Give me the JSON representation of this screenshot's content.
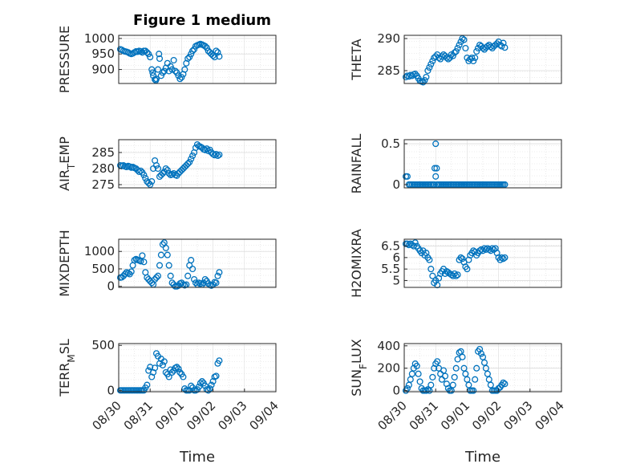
{
  "figure": {
    "title": "Figure 1 medium",
    "marker_color": "#0072BD",
    "axis_color": "#262626",
    "grid_color": "#dcdcdc"
  },
  "chart_data": [
    {
      "type": "scatter",
      "title": "Figure 1 medium",
      "ylabel": "PRESSURE",
      "xlim": [
        0,
        5
      ],
      "ylim": [
        855,
        1010
      ],
      "yticks": [
        900,
        950,
        1000
      ],
      "ytick_labels": [
        "900",
        "950",
        "1000"
      ],
      "xticks": [],
      "xtick_labels": [],
      "x": [
        0.05,
        0.1,
        0.15,
        0.2,
        0.25,
        0.3,
        0.35,
        0.4,
        0.45,
        0.5,
        0.55,
        0.6,
        0.65,
        0.7,
        0.75,
        0.8,
        0.85,
        0.9,
        0.95,
        1.0,
        1.05,
        1.08,
        1.1,
        1.15,
        1.18,
        1.2,
        1.25,
        1.28,
        1.3,
        1.35,
        1.4,
        1.45,
        1.5,
        1.55,
        1.6,
        1.65,
        1.7,
        1.75,
        1.8,
        1.85,
        1.9,
        1.95,
        2.0,
        2.05,
        2.1,
        2.15,
        2.2,
        2.25,
        2.3,
        2.35,
        2.4,
        2.45,
        2.5,
        2.55,
        2.6,
        2.65,
        2.7,
        2.75,
        2.8,
        2.85,
        2.9,
        2.95,
        3.0,
        3.05,
        3.1,
        3.15,
        3.2
      ],
      "y": [
        965,
        963,
        960,
        958,
        957,
        955,
        952,
        950,
        952,
        955,
        958,
        957,
        960,
        958,
        955,
        960,
        960,
        955,
        950,
        940,
        900,
        890,
        880,
        868,
        865,
        870,
        900,
        950,
        935,
        880,
        890,
        895,
        905,
        920,
        895,
        910,
        900,
        930,
        895,
        890,
        880,
        870,
        875,
        885,
        900,
        920,
        935,
        940,
        950,
        960,
        965,
        975,
        978,
        980,
        982,
        980,
        978,
        975,
        970,
        960,
        955,
        950,
        945,
        940,
        960,
        955,
        942
      ]
    },
    {
      "type": "scatter",
      "title": "",
      "ylabel": "THETA",
      "xlim": [
        0,
        5
      ],
      "ylim": [
        283,
        290.5
      ],
      "yticks": [
        285,
        290
      ],
      "ytick_labels": [
        "285",
        "290"
      ],
      "xticks": [],
      "xtick_labels": [],
      "x": [
        0.05,
        0.1,
        0.15,
        0.2,
        0.25,
        0.3,
        0.35,
        0.4,
        0.45,
        0.5,
        0.55,
        0.6,
        0.65,
        0.7,
        0.75,
        0.8,
        0.85,
        0.9,
        0.95,
        1.0,
        1.05,
        1.1,
        1.15,
        1.2,
        1.25,
        1.3,
        1.35,
        1.4,
        1.45,
        1.5,
        1.55,
        1.6,
        1.65,
        1.7,
        1.75,
        1.8,
        1.85,
        1.9,
        1.95,
        2.0,
        2.05,
        2.1,
        2.15,
        2.2,
        2.25,
        2.3,
        2.35,
        2.4,
        2.45,
        2.5,
        2.55,
        2.6,
        2.65,
        2.7,
        2.75,
        2.8,
        2.85,
        2.9,
        2.95,
        3.0,
        3.05,
        3.1,
        3.15,
        3.2
      ],
      "y": [
        284,
        284.2,
        284.1,
        284.3,
        284.2,
        284.4,
        284.5,
        284.2,
        283.8,
        283.4,
        283.3,
        283.2,
        283.5,
        284,
        285,
        285.5,
        286,
        286.5,
        287,
        287.2,
        287.5,
        287,
        286.8,
        287.2,
        287.5,
        287.3,
        287,
        286.8,
        287,
        287.5,
        287.3,
        287.8,
        288,
        288.5,
        289,
        289.5,
        290,
        289.8,
        288.5,
        287,
        286.5,
        286.8,
        287,
        286.5,
        287,
        288,
        288.5,
        289,
        288.8,
        288.5,
        288.3,
        288.6,
        288.8,
        289,
        288.7,
        288.5,
        288.8,
        289,
        289.2,
        289.5,
        289,
        288.8,
        289.3,
        288.6
      ]
    },
    {
      "type": "scatter",
      "title": "",
      "ylabel": "AIR_TEMP",
      "xlim": [
        0,
        5
      ],
      "ylim": [
        274,
        289
      ],
      "yticks": [
        275,
        280,
        285
      ],
      "ytick_labels": [
        "275",
        "280",
        "285"
      ],
      "xticks": [],
      "xtick_labels": [],
      "x": [
        0.05,
        0.1,
        0.15,
        0.2,
        0.25,
        0.3,
        0.35,
        0.4,
        0.45,
        0.5,
        0.55,
        0.6,
        0.65,
        0.7,
        0.75,
        0.8,
        0.85,
        0.9,
        0.95,
        1.0,
        1.05,
        1.1,
        1.15,
        1.2,
        1.25,
        1.3,
        1.35,
        1.4,
        1.45,
        1.5,
        1.55,
        1.6,
        1.65,
        1.7,
        1.75,
        1.8,
        1.85,
        1.9,
        1.95,
        2.0,
        2.05,
        2.1,
        2.15,
        2.2,
        2.25,
        2.3,
        2.35,
        2.4,
        2.45,
        2.5,
        2.55,
        2.6,
        2.65,
        2.7,
        2.75,
        2.8,
        2.85,
        2.9,
        2.95,
        3.0,
        3.05,
        3.1,
        3.15,
        3.2
      ],
      "y": [
        281,
        280.8,
        281,
        280.7,
        280.5,
        280.8,
        280.6,
        280.3,
        280.5,
        280.2,
        280,
        279.5,
        279,
        279.3,
        278.8,
        278,
        277,
        276,
        275.5,
        275,
        276,
        280,
        282.5,
        281,
        280,
        277.5,
        278,
        278.5,
        279,
        280,
        279.5,
        278.5,
        278,
        278.2,
        278.5,
        278,
        277.8,
        278.5,
        279,
        279.5,
        280,
        280.5,
        281,
        281.5,
        282,
        283,
        284,
        285,
        286.5,
        287.5,
        287,
        286.8,
        286.5,
        286,
        285.8,
        286.2,
        285.5,
        285.8,
        285,
        284.5,
        284.2,
        284.5,
        284,
        284.3
      ]
    },
    {
      "type": "scatter",
      "title": "",
      "ylabel": "RAINFALL",
      "xlim": [
        0,
        5
      ],
      "ylim": [
        -0.04,
        0.55
      ],
      "yticks": [
        0,
        0.5
      ],
      "ytick_labels": [
        "0",
        "0.5"
      ],
      "xticks": [],
      "xtick_labels": [],
      "x": [
        0.05,
        0.1,
        0.15,
        0.2,
        0.25,
        0.3,
        0.35,
        0.4,
        0.45,
        0.5,
        0.55,
        0.6,
        0.65,
        0.7,
        0.75,
        0.8,
        0.85,
        0.9,
        0.95,
        0.97,
        1.0,
        1.0,
        1.03,
        1.05,
        1.1,
        1.15,
        1.2,
        1.25,
        1.3,
        1.35,
        1.4,
        1.45,
        1.5,
        1.55,
        1.6,
        1.65,
        1.7,
        1.75,
        1.8,
        1.85,
        1.9,
        1.95,
        2.0,
        2.05,
        2.1,
        2.15,
        2.2,
        2.25,
        2.3,
        2.35,
        2.4,
        2.45,
        2.5,
        2.55,
        2.6,
        2.65,
        2.7,
        2.75,
        2.8,
        2.85,
        2.9,
        2.95,
        3.0,
        3.05,
        3.1,
        3.15,
        3.2
      ],
      "y": [
        0.1,
        0.1,
        0,
        0,
        0,
        0,
        0,
        0,
        0,
        0,
        0,
        0,
        0,
        0,
        0,
        0,
        0,
        0,
        0,
        0.2,
        0.1,
        0.5,
        0.2,
        0,
        0,
        0,
        0,
        0,
        0,
        0,
        0,
        0,
        0,
        0,
        0,
        0,
        0,
        0,
        0,
        0,
        0,
        0,
        0,
        0,
        0,
        0,
        0,
        0,
        0,
        0,
        0,
        0,
        0,
        0,
        0,
        0,
        0,
        0,
        0,
        0,
        0,
        0,
        0,
        0,
        0,
        0,
        0
      ]
    },
    {
      "type": "scatter",
      "title": "",
      "ylabel": "MIXDEPTH",
      "xlim": [
        0,
        5
      ],
      "ylim": [
        -30,
        1350
      ],
      "yticks": [
        0,
        500,
        1000
      ],
      "ytick_labels": [
        "0",
        "500",
        "1000"
      ],
      "xticks": [],
      "xtick_labels": [],
      "x": [
        0.05,
        0.1,
        0.15,
        0.2,
        0.25,
        0.3,
        0.35,
        0.4,
        0.45,
        0.5,
        0.55,
        0.6,
        0.65,
        0.7,
        0.75,
        0.8,
        0.85,
        0.9,
        0.95,
        1.0,
        1.05,
        1.1,
        1.15,
        1.2,
        1.25,
        1.3,
        1.35,
        1.4,
        1.45,
        1.5,
        1.55,
        1.6,
        1.65,
        1.7,
        1.75,
        1.8,
        1.85,
        1.9,
        1.95,
        2.0,
        2.05,
        2.1,
        2.15,
        2.2,
        2.25,
        2.3,
        2.35,
        2.4,
        2.45,
        2.5,
        2.55,
        2.6,
        2.65,
        2.7,
        2.75,
        2.8,
        2.85,
        2.9,
        2.95,
        3.0,
        3.05,
        3.1,
        3.15,
        3.2
      ],
      "y": [
        250,
        260,
        300,
        350,
        400,
        380,
        350,
        420,
        600,
        750,
        780,
        760,
        740,
        720,
        880,
        700,
        400,
        250,
        200,
        150,
        100,
        50,
        200,
        250,
        300,
        600,
        900,
        1200,
        1250,
        1100,
        900,
        600,
        300,
        100,
        50,
        0,
        0,
        20,
        80,
        100,
        50,
        30,
        50,
        300,
        600,
        750,
        500,
        200,
        100,
        50,
        100,
        80,
        50,
        100,
        200,
        150,
        80,
        40,
        20,
        50,
        120,
        100,
        300,
        400
      ]
    },
    {
      "type": "scatter",
      "title": "",
      "ylabel": "H2OMIXRA",
      "xlim": [
        0,
        5
      ],
      "ylim": [
        4.7,
        6.8
      ],
      "yticks": [
        5,
        5.5,
        6,
        6.5
      ],
      "ytick_labels": [
        "5",
        "5.5",
        "6",
        "6.5"
      ],
      "xticks": [],
      "xtick_labels": [],
      "x": [
        0.05,
        0.1,
        0.15,
        0.2,
        0.25,
        0.3,
        0.35,
        0.4,
        0.45,
        0.5,
        0.55,
        0.6,
        0.65,
        0.7,
        0.75,
        0.8,
        0.85,
        0.9,
        0.95,
        1.0,
        1.05,
        1.1,
        1.15,
        1.2,
        1.25,
        1.3,
        1.35,
        1.4,
        1.45,
        1.5,
        1.55,
        1.6,
        1.65,
        1.7,
        1.75,
        1.8,
        1.85,
        1.9,
        1.95,
        2.0,
        2.05,
        2.1,
        2.15,
        2.2,
        2.25,
        2.3,
        2.35,
        2.4,
        2.45,
        2.5,
        2.55,
        2.6,
        2.65,
        2.7,
        2.75,
        2.8,
        2.85,
        2.9,
        2.95,
        3.0,
        3.05,
        3.1,
        3.15,
        3.2
      ],
      "y": [
        6.6,
        6.6,
        6.55,
        6.6,
        6.55,
        6.5,
        6.65,
        6.5,
        6.4,
        6.3,
        6.2,
        6.3,
        6.1,
        6.2,
        6.0,
        5.9,
        5.5,
        5.2,
        4.9,
        5.0,
        4.8,
        5.1,
        5.3,
        5.4,
        5.5,
        5.3,
        5.4,
        5.35,
        5.3,
        5.25,
        5.2,
        5.3,
        5.2,
        5.25,
        5.9,
        6.0,
        5.95,
        5.8,
        5.6,
        5.5,
        5.9,
        6.1,
        6.2,
        6.3,
        6.25,
        6.1,
        6.2,
        6.3,
        6.35,
        6.3,
        6.4,
        6.35,
        6.4,
        6.35,
        6.3,
        6.4,
        6.35,
        6.4,
        6.2,
        6.0,
        5.9,
        6.0,
        5.95,
        6.0
      ]
    },
    {
      "type": "scatter",
      "title": "",
      "ylabel": "TERR_MSL",
      "xlim": [
        0,
        5
      ],
      "ylim": [
        -15,
        520
      ],
      "yticks": [
        0,
        500
      ],
      "ytick_labels": [
        "0",
        "500"
      ],
      "xticks": [
        0,
        1,
        2,
        3,
        4,
        5
      ],
      "xtick_labels": [
        "08/30",
        "08/31",
        "09/01",
        "09/02",
        "09/03",
        "09/04"
      ],
      "xlabel": "Time",
      "x": [
        0.05,
        0.1,
        0.15,
        0.2,
        0.25,
        0.3,
        0.35,
        0.4,
        0.45,
        0.5,
        0.55,
        0.6,
        0.65,
        0.7,
        0.75,
        0.8,
        0.85,
        0.9,
        0.95,
        1.0,
        1.05,
        1.1,
        1.15,
        1.2,
        1.25,
        1.3,
        1.35,
        1.4,
        1.45,
        1.5,
        1.55,
        1.6,
        1.65,
        1.7,
        1.75,
        1.8,
        1.85,
        1.9,
        1.95,
        2.0,
        2.05,
        2.1,
        2.15,
        2.2,
        2.25,
        2.3,
        2.35,
        2.4,
        2.45,
        2.5,
        2.55,
        2.6,
        2.65,
        2.7,
        2.75,
        2.8,
        2.85,
        2.9,
        2.95,
        3.0,
        3.05,
        3.1,
        3.15,
        3.2
      ],
      "y": [
        0,
        0,
        0,
        0,
        0,
        0,
        0,
        0,
        0,
        0,
        0,
        0,
        0,
        0,
        0,
        0,
        30,
        60,
        220,
        260,
        150,
        200,
        250,
        410,
        380,
        300,
        350,
        280,
        320,
        200,
        180,
        150,
        230,
        200,
        220,
        250,
        260,
        240,
        200,
        180,
        150,
        20,
        0,
        0,
        0,
        50,
        30,
        0,
        0,
        10,
        40,
        80,
        100,
        80,
        50,
        10,
        0,
        20,
        60,
        100,
        150,
        160,
        300,
        330
      ]
    },
    {
      "type": "scatter",
      "title": "",
      "ylabel": "SUN_FLUX",
      "xlim": [
        0,
        5
      ],
      "ylim": [
        -10,
        420
      ],
      "yticks": [
        0,
        200,
        400
      ],
      "ytick_labels": [
        "0",
        "200",
        "400"
      ],
      "xticks": [
        0,
        1,
        2,
        3,
        4,
        5
      ],
      "xtick_labels": [
        "08/30",
        "08/31",
        "09/01",
        "09/02",
        "09/03",
        "09/04"
      ],
      "xlabel": "Time",
      "x": [
        0.05,
        0.1,
        0.15,
        0.2,
        0.25,
        0.3,
        0.35,
        0.4,
        0.45,
        0.5,
        0.55,
        0.6,
        0.65,
        0.7,
        0.75,
        0.8,
        0.85,
        0.9,
        0.95,
        1.0,
        1.05,
        1.1,
        1.15,
        1.2,
        1.25,
        1.3,
        1.35,
        1.4,
        1.45,
        1.5,
        1.55,
        1.6,
        1.65,
        1.7,
        1.75,
        1.8,
        1.85,
        1.9,
        1.95,
        2.0,
        2.05,
        2.1,
        2.15,
        2.2,
        2.25,
        2.3,
        2.35,
        2.4,
        2.45,
        2.5,
        2.55,
        2.6,
        2.65,
        2.7,
        2.75,
        2.8,
        2.85,
        2.9,
        2.95,
        3.0,
        3.05,
        3.1,
        3.15,
        3.2
      ],
      "y": [
        0,
        20,
        50,
        100,
        150,
        200,
        240,
        220,
        150,
        80,
        20,
        0,
        0,
        0,
        10,
        0,
        50,
        120,
        200,
        240,
        260,
        200,
        150,
        100,
        180,
        130,
        60,
        20,
        0,
        0,
        50,
        120,
        200,
        280,
        340,
        350,
        300,
        200,
        150,
        100,
        50,
        0,
        0,
        0,
        100,
        200,
        350,
        370,
        330,
        300,
        250,
        200,
        150,
        100,
        50,
        0,
        0,
        0,
        0,
        20,
        30,
        50,
        70,
        60
      ]
    }
  ]
}
